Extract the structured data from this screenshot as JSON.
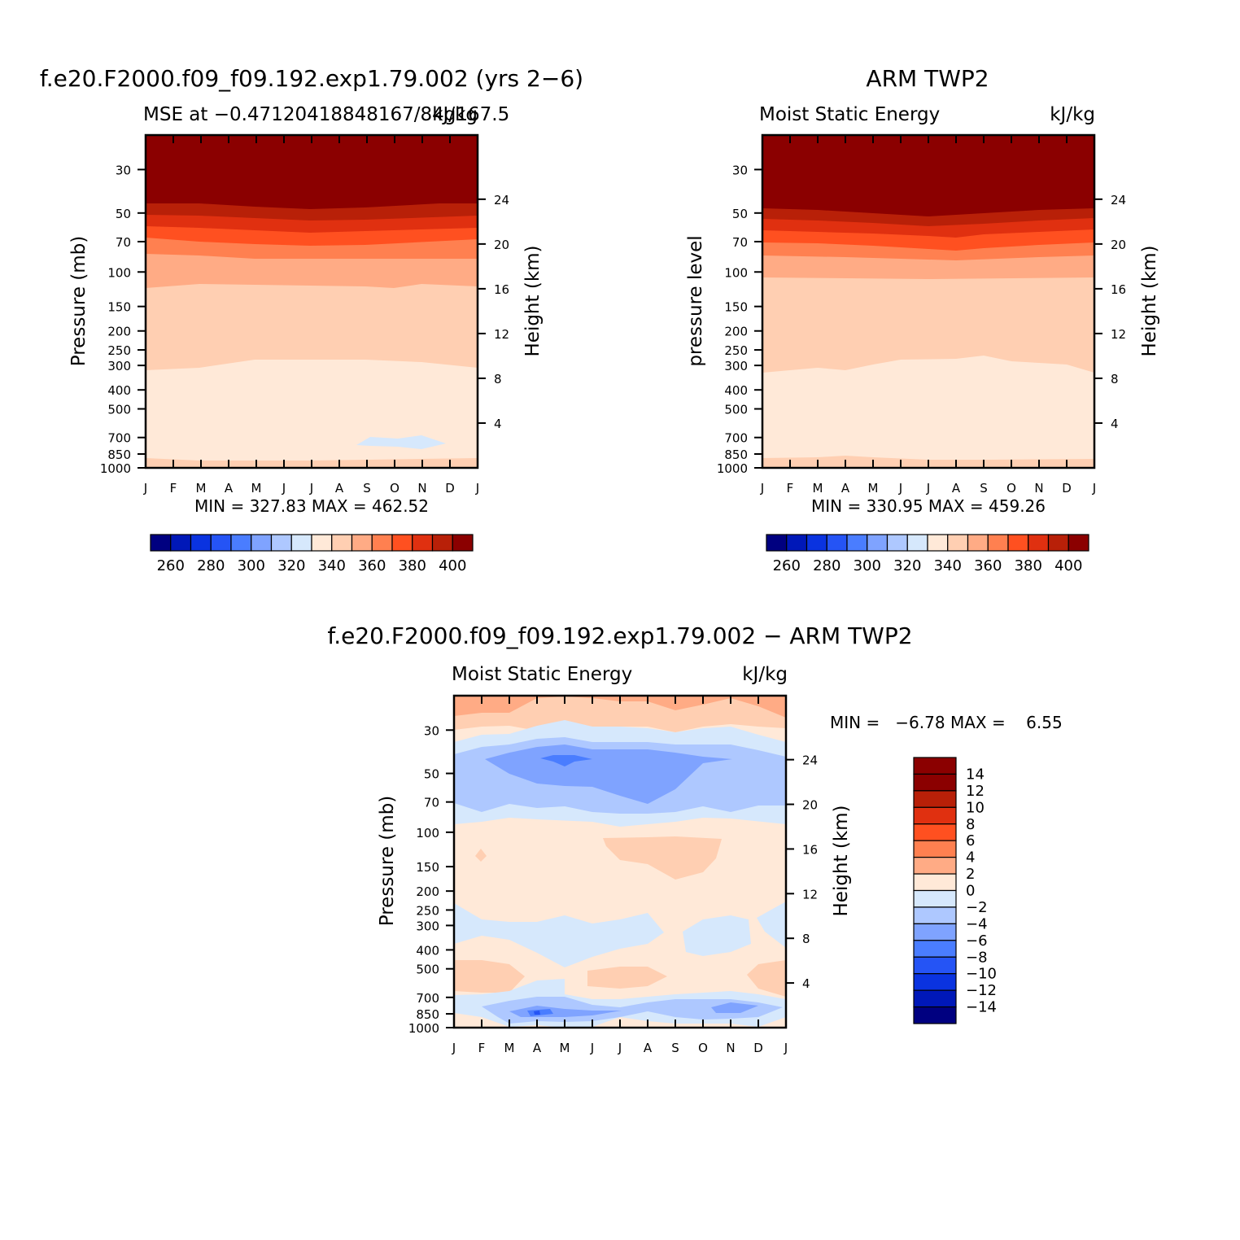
{
  "months": [
    "J",
    "F",
    "M",
    "A",
    "M",
    "J",
    "J",
    "A",
    "S",
    "O",
    "N",
    "D",
    "J"
  ],
  "pressure_ticks": [
    30,
    50,
    70,
    100,
    150,
    200,
    250,
    300,
    400,
    500,
    700,
    850,
    1000
  ],
  "height_ticks": [
    4,
    8,
    12,
    16,
    20,
    24
  ],
  "panel_a": {
    "title": "f.e20.F2000.f09_f09.192.exp1.79.002 (yrs 2−6)",
    "left_label": "MSE at −0.47120418848167/84g167.5",
    "right_label": "kJ/kg",
    "ylabel": "Pressure (mb)",
    "ylabel_right": "Height (km)",
    "stats": "MIN = 327.83 MAX = 462.52"
  },
  "panel_b": {
    "title": "ARM TWP2",
    "left_label": "Moist Static Energy",
    "right_label": "kJ/kg",
    "ylabel": "pressure level",
    "ylabel_right": "Height (km)",
    "stats": "MIN = 330.95 MAX = 459.26"
  },
  "panel_c": {
    "title": "f.e20.F2000.f09_f09.192.exp1.79.002 − ARM TWP2",
    "left_label": "Moist Static Energy",
    "right_label": "kJ/kg",
    "ylabel": "Pressure (mb)",
    "ylabel_right": "Height (km)",
    "stats": "MIN =   −6.78 MAX =    6.55"
  },
  "colorbar_abs": {
    "labels": [
      "260",
      "280",
      "300",
      "320",
      "340",
      "360",
      "380",
      "400"
    ],
    "colors": [
      "#000080",
      "#0018b8",
      "#0a33e0",
      "#2554f5",
      "#4a7dff",
      "#7fa3ff",
      "#aec8ff",
      "#d6e8fc",
      "#ffe9d8",
      "#ffcfb2",
      "#ffab85",
      "#ff8050",
      "#ff5020",
      "#e03010",
      "#b82008",
      "#8b0000"
    ]
  },
  "colorbar_diff": {
    "labels": [
      "14",
      "12",
      "10",
      "8",
      "6",
      "4",
      "2",
      "0",
      "−2",
      "−4",
      "−6",
      "−8",
      "−10",
      "−12",
      "−14"
    ],
    "colors": [
      "#8b0000",
      "#b82008",
      "#e03010",
      "#ff5020",
      "#ff8050",
      "#ffab85",
      "#ffe9d8",
      "#d6e8fc",
      "#aec8ff",
      "#7fa3ff",
      "#4a7dff",
      "#2554f5",
      "#0a33e0",
      "#0018b8",
      "#000080"
    ]
  },
  "chart_data": [
    {
      "type": "heatmap",
      "title": "f.e20.F2000.f09_f09.192.exp1.79.002 (yrs 2−6)",
      "subtitle": "MSE at −0.47120418848167/84g167.5",
      "units": "kJ/kg",
      "xlabel": "",
      "ylabel": "Pressure (mb)",
      "ylabel_right": "Height (km)",
      "x": [
        "J",
        "F",
        "M",
        "A",
        "M",
        "J",
        "J",
        "A",
        "S",
        "O",
        "N",
        "D",
        "J"
      ],
      "y_pressure_ticks": [
        30,
        50,
        70,
        100,
        150,
        200,
        250,
        300,
        400,
        500,
        700,
        850,
        1000
      ],
      "height_ticks_km": [
        4,
        8,
        12,
        16,
        20,
        24
      ],
      "y_scale": "log",
      "min": 327.83,
      "max": 462.52,
      "contour_levels": [
        260,
        270,
        280,
        290,
        300,
        310,
        320,
        330,
        340,
        350,
        360,
        370,
        380,
        390,
        400
      ]
    },
    {
      "type": "heatmap",
      "title": "ARM TWP2",
      "subtitle": "Moist Static Energy",
      "units": "kJ/kg",
      "xlabel": "",
      "ylabel": "pressure level",
      "ylabel_right": "Height (km)",
      "x": [
        "J",
        "F",
        "M",
        "A",
        "M",
        "J",
        "J",
        "A",
        "S",
        "O",
        "N",
        "D",
        "J"
      ],
      "y_pressure_ticks": [
        30,
        50,
        70,
        100,
        150,
        200,
        250,
        300,
        400,
        500,
        700,
        850,
        1000
      ],
      "height_ticks_km": [
        4,
        8,
        12,
        16,
        20,
        24
      ],
      "y_scale": "log",
      "min": 330.95,
      "max": 459.26,
      "contour_levels": [
        260,
        270,
        280,
        290,
        300,
        310,
        320,
        330,
        340,
        350,
        360,
        370,
        380,
        390,
        400
      ]
    },
    {
      "type": "heatmap",
      "title": "f.e20.F2000.f09_f09.192.exp1.79.002 − ARM TWP2",
      "subtitle": "Moist Static Energy",
      "units": "kJ/kg",
      "xlabel": "",
      "ylabel": "Pressure (mb)",
      "ylabel_right": "Height (km)",
      "x": [
        "J",
        "F",
        "M",
        "A",
        "M",
        "J",
        "J",
        "A",
        "S",
        "O",
        "N",
        "D",
        "J"
      ],
      "y_pressure_ticks": [
        30,
        50,
        70,
        100,
        150,
        200,
        250,
        300,
        400,
        500,
        700,
        850,
        1000
      ],
      "height_ticks_km": [
        4,
        8,
        12,
        16,
        20,
        24
      ],
      "y_scale": "log",
      "min": -6.78,
      "max": 6.55,
      "contour_levels": [
        -14,
        -12,
        -10,
        -8,
        -6,
        -4,
        -2,
        0,
        2,
        4,
        6,
        8,
        10,
        12,
        14
      ]
    }
  ]
}
